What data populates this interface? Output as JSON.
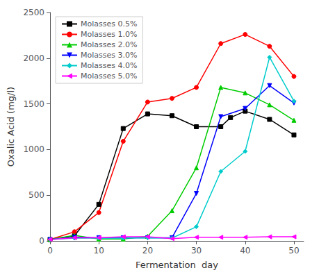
{
  "chart_data": {
    "type": "line",
    "xlabel": "Fermentation  day",
    "ylabel": "Oxalic Acid (mg/l)",
    "xlim": [
      0,
      52
    ],
    "ylim": [
      0,
      2500
    ],
    "xticks": [
      0,
      10,
      20,
      30,
      40,
      50
    ],
    "yticks": [
      0,
      500,
      1000,
      1500,
      2000,
      2500
    ],
    "grid": false,
    "legend": "upper left",
    "series": [
      {
        "name": "Molasses 0.5%",
        "color": "#000000",
        "marker": "square",
        "x": [
          0,
          5,
          10,
          15,
          20,
          25,
          30,
          35,
          37,
          40,
          45,
          50
        ],
        "values": [
          15,
          55,
          400,
          1230,
          1390,
          1370,
          1250,
          1250,
          1350,
          1420,
          1330,
          1160
        ]
      },
      {
        "name": "Molasses 1.0%",
        "color": "#ff0000",
        "marker": "circle",
        "x": [
          0,
          5,
          10,
          15,
          20,
          25,
          30,
          35,
          40,
          45,
          50
        ],
        "values": [
          15,
          100,
          310,
          1090,
          1520,
          1560,
          1680,
          2160,
          2260,
          2130,
          1800
        ]
      },
      {
        "name": "Molasses 2.0%",
        "color": "#00cc00",
        "marker": "triangle-up",
        "x": [
          0,
          5,
          10,
          15,
          20,
          25,
          30,
          35,
          40,
          45,
          50
        ],
        "values": [
          15,
          60,
          20,
          20,
          50,
          330,
          800,
          1680,
          1620,
          1490,
          1320
        ]
      },
      {
        "name": "Molasses 3.0%",
        "color": "#0000ff",
        "marker": "triangle-down",
        "x": [
          0,
          5,
          10,
          15,
          20,
          25,
          30,
          35,
          40,
          45,
          50
        ],
        "values": [
          15,
          40,
          35,
          35,
          35,
          35,
          520,
          1360,
          1450,
          1700,
          1510
        ]
      },
      {
        "name": "Molasses 4.0%",
        "color": "#00cccc",
        "marker": "diamond",
        "x": [
          0,
          5,
          10,
          15,
          20,
          25,
          30,
          35,
          40,
          45,
          50
        ],
        "values": [
          15,
          30,
          30,
          30,
          35,
          30,
          155,
          760,
          980,
          2010,
          1530
        ]
      },
      {
        "name": "Molasses 5.0%",
        "color": "#ff00ff",
        "marker": "triangle-left",
        "x": [
          0,
          5,
          10,
          15,
          20,
          25,
          30,
          35,
          40,
          45,
          50
        ],
        "values": [
          15,
          35,
          35,
          45,
          45,
          25,
          40,
          40,
          40,
          45,
          45
        ]
      }
    ]
  }
}
